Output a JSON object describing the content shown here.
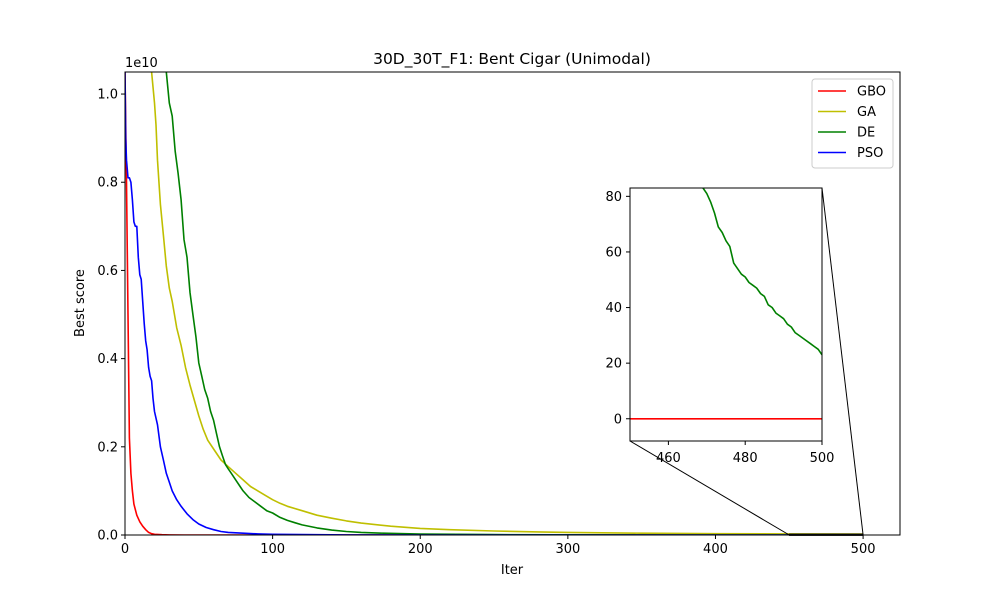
{
  "chart_data": {
    "type": "line",
    "title": "30D_30T_F1: Bent Cigar (Unimodal)",
    "xlabel": "Iter",
    "ylabel": "Best score",
    "offset_label": "1e10",
    "xlim": [
      0,
      525
    ],
    "ylim": [
      0,
      1.05
    ],
    "y_multiplier": "1e10",
    "xticks": [
      0,
      100,
      200,
      300,
      400,
      500
    ],
    "yticks": [
      0.0,
      0.2,
      0.4,
      0.6,
      0.8,
      1.0
    ],
    "xtick_labels": [
      "0",
      "100",
      "200",
      "300",
      "400",
      "500"
    ],
    "ytick_labels": [
      "0.0",
      "0.2",
      "0.4",
      "0.6",
      "0.8",
      "1.0"
    ],
    "legend_position": "upper right",
    "series": [
      {
        "name": "GBO",
        "color": "#ff0000",
        "x": [
          0,
          1,
          2,
          3,
          4,
          5,
          6,
          8,
          10,
          12,
          14,
          16,
          18,
          20,
          25,
          30,
          40,
          60,
          100,
          200,
          300,
          400,
          500
        ],
        "y": [
          1.05,
          0.8,
          0.5,
          0.22,
          0.14,
          0.1,
          0.07,
          0.045,
          0.03,
          0.02,
          0.012,
          0.006,
          0.003,
          0.0015,
          0.0006,
          0.0003,
          0.0001,
          3e-05,
          1e-05,
          0,
          0,
          0,
          0
        ]
      },
      {
        "name": "GA",
        "color": "#bfbf00",
        "x": [
          18,
          20,
          21,
          22,
          24,
          26,
          28,
          30,
          32,
          35,
          38,
          41,
          44,
          47,
          50,
          53,
          56,
          60,
          65,
          70,
          75,
          80,
          85,
          90,
          95,
          100,
          105,
          110,
          120,
          130,
          140,
          150,
          160,
          180,
          200,
          220,
          250,
          280,
          300,
          350,
          400,
          450,
          500
        ],
        "y": [
          1.05,
          0.98,
          0.93,
          0.85,
          0.75,
          0.68,
          0.61,
          0.56,
          0.53,
          0.47,
          0.43,
          0.38,
          0.34,
          0.305,
          0.27,
          0.24,
          0.215,
          0.195,
          0.17,
          0.155,
          0.14,
          0.125,
          0.11,
          0.1,
          0.09,
          0.08,
          0.072,
          0.065,
          0.055,
          0.045,
          0.038,
          0.032,
          0.027,
          0.02,
          0.015,
          0.012,
          0.009,
          0.007,
          0.006,
          0.004,
          0.003,
          0.0025,
          0.002
        ]
      },
      {
        "name": "DE",
        "color": "#008000",
        "x": [
          28,
          30,
          32,
          34,
          36,
          38,
          40,
          42,
          44,
          46,
          48,
          50,
          52,
          54,
          56,
          58,
          60,
          62,
          64,
          66,
          68,
          70,
          72,
          75,
          78,
          80,
          84,
          88,
          92,
          96,
          100,
          105,
          110,
          115,
          120,
          130,
          140,
          150,
          160,
          175,
          200,
          250,
          300,
          400,
          500
        ],
        "y": [
          1.05,
          0.98,
          0.95,
          0.87,
          0.82,
          0.76,
          0.67,
          0.63,
          0.55,
          0.5,
          0.45,
          0.39,
          0.36,
          0.33,
          0.31,
          0.28,
          0.26,
          0.23,
          0.2,
          0.18,
          0.16,
          0.15,
          0.14,
          0.125,
          0.11,
          0.1,
          0.085,
          0.075,
          0.065,
          0.055,
          0.05,
          0.04,
          0.033,
          0.028,
          0.023,
          0.016,
          0.011,
          0.008,
          0.006,
          0.004,
          0.002,
          0.001,
          0.0005,
          0.0001,
          1e-05
        ]
      },
      {
        "name": "PSO",
        "color": "#0000ff",
        "x": [
          0,
          0.5,
          1,
          2,
          3,
          4,
          5,
          6,
          7,
          8,
          9,
          10,
          11,
          12,
          13,
          14,
          15,
          16,
          17,
          18,
          19,
          20,
          22,
          24,
          26,
          28,
          30,
          32,
          35,
          38,
          42,
          46,
          50,
          55,
          60,
          65,
          70,
          80,
          90,
          100,
          120,
          150,
          200,
          300,
          400,
          500
        ],
        "y": [
          1.05,
          0.9,
          0.85,
          0.81,
          0.81,
          0.8,
          0.76,
          0.71,
          0.7,
          0.7,
          0.63,
          0.59,
          0.58,
          0.53,
          0.48,
          0.44,
          0.42,
          0.38,
          0.36,
          0.35,
          0.31,
          0.28,
          0.25,
          0.2,
          0.17,
          0.14,
          0.12,
          0.1,
          0.08,
          0.065,
          0.048,
          0.035,
          0.025,
          0.017,
          0.012,
          0.008,
          0.006,
          0.004,
          0.0025,
          0.0015,
          0.0008,
          0.0003,
          0.0001,
          2e-05,
          5e-06,
          0
        ]
      }
    ],
    "inset": {
      "xlim": [
        450,
        500
      ],
      "ylim": [
        -8,
        83
      ],
      "xticks": [
        460,
        480,
        500
      ],
      "yticks": [
        0,
        20,
        40,
        60,
        80
      ],
      "xtick_labels": [
        "460",
        "480",
        "500"
      ],
      "ytick_labels": [
        "0",
        "20",
        "40",
        "60",
        "80"
      ],
      "series": [
        {
          "name": "DE",
          "color": "#008000",
          "x": [
            469,
            470,
            471,
            472,
            473,
            474,
            475,
            476,
            477,
            478,
            479,
            480,
            481,
            482,
            483,
            484,
            485,
            486,
            487,
            488,
            489,
            490,
            491,
            492,
            493,
            494,
            495,
            496,
            497,
            498,
            499,
            500
          ],
          "y": [
            83,
            81,
            78,
            74,
            69,
            67,
            64,
            62,
            56,
            54,
            52,
            51,
            49,
            48,
            47,
            45,
            44,
            41,
            40,
            38,
            37,
            36,
            34,
            33,
            31,
            30,
            29,
            28,
            27,
            26,
            25,
            23
          ]
        },
        {
          "name": "GBO",
          "color": "#ff0000",
          "x": [
            450,
            500
          ],
          "y": [
            0,
            0
          ]
        }
      ]
    }
  }
}
